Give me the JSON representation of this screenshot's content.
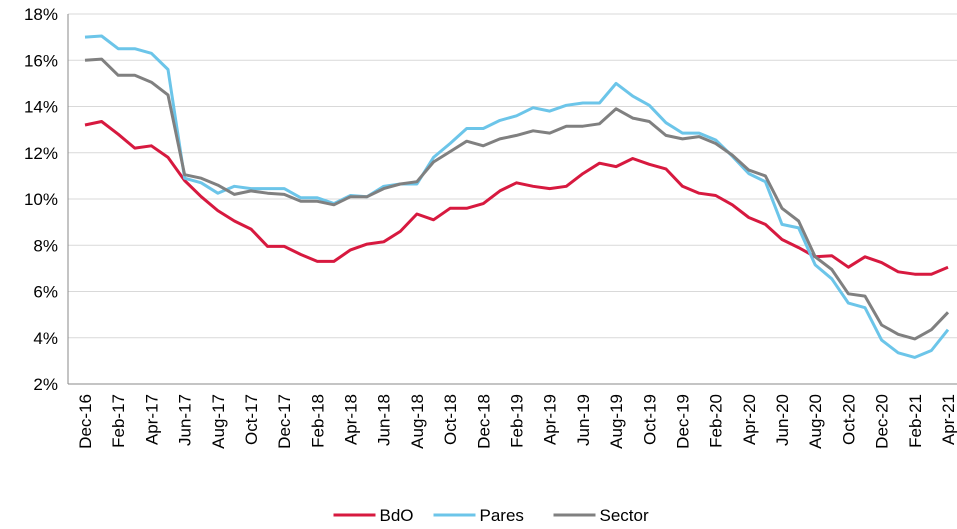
{
  "chart_data": {
    "type": "line",
    "categories": [
      "Dec-16",
      null,
      "Feb-17",
      null,
      "Apr-17",
      null,
      "Jun-17",
      null,
      "Aug-17",
      null,
      "Oct-17",
      null,
      "Dec-17",
      null,
      "Feb-18",
      null,
      "Apr-18",
      null,
      "Jun-18",
      null,
      "Aug-18",
      null,
      "Oct-18",
      null,
      "Dec-18",
      null,
      "Feb-19",
      null,
      "Apr-19",
      null,
      "Jun-19",
      null,
      "Aug-19",
      null,
      "Oct-19",
      null,
      "Dec-19",
      null,
      "Feb-20",
      null,
      "Apr-20",
      null,
      "Jun-20",
      null,
      "Aug-20",
      null,
      "Oct-20",
      null,
      "Dec-20",
      null,
      "Feb-21",
      null,
      "Apr-21"
    ],
    "series": [
      {
        "name": "BdO",
        "color": "#d7193f",
        "values": [
          13.2,
          13.35,
          12.8,
          12.2,
          12.3,
          11.8,
          10.8,
          10.1,
          9.5,
          9.05,
          8.7,
          7.95,
          7.95,
          7.6,
          7.3,
          7.3,
          7.8,
          8.05,
          8.15,
          8.6,
          9.35,
          9.1,
          9.6,
          9.6,
          9.8,
          10.35,
          10.7,
          10.55,
          10.45,
          10.55,
          11.1,
          11.55,
          11.4,
          11.75,
          11.5,
          11.3,
          10.55,
          10.25,
          10.15,
          9.75,
          9.2,
          8.9,
          8.25,
          7.9,
          7.5,
          7.55,
          7.05,
          7.5,
          7.25,
          6.85,
          6.75,
          6.75,
          7.05
        ]
      },
      {
        "name": "Pares",
        "color": "#6cc5e9",
        "values": [
          17.0,
          17.05,
          16.5,
          16.5,
          16.3,
          15.6,
          10.9,
          10.7,
          10.25,
          10.55,
          10.45,
          10.45,
          10.45,
          10.05,
          10.05,
          9.8,
          10.15,
          10.1,
          10.55,
          10.65,
          10.65,
          11.8,
          12.4,
          13.05,
          13.05,
          13.4,
          13.6,
          13.95,
          13.8,
          14.05,
          14.15,
          14.15,
          15.0,
          14.45,
          14.05,
          13.3,
          12.85,
          12.85,
          12.55,
          11.85,
          11.1,
          10.75,
          8.9,
          8.75,
          7.15,
          6.55,
          5.5,
          5.3,
          3.9,
          3.35,
          3.15,
          3.45,
          4.35
        ]
      },
      {
        "name": "Sector",
        "color": "#808080",
        "values": [
          16.0,
          16.05,
          15.35,
          15.35,
          15.05,
          14.5,
          11.05,
          10.9,
          10.6,
          10.2,
          10.35,
          10.25,
          10.2,
          9.9,
          9.9,
          9.75,
          10.1,
          10.1,
          10.45,
          10.65,
          10.75,
          11.6,
          12.05,
          12.5,
          12.3,
          12.6,
          12.75,
          12.95,
          12.85,
          13.15,
          13.15,
          13.25,
          13.9,
          13.5,
          13.35,
          12.75,
          12.6,
          12.7,
          12.4,
          11.9,
          11.25,
          11.0,
          9.6,
          9.05,
          7.5,
          6.95,
          5.9,
          5.8,
          4.55,
          4.15,
          3.95,
          4.35,
          5.1
        ]
      }
    ],
    "ylim": [
      2,
      18
    ],
    "yticks": [
      {
        "value": 2,
        "label": "2%"
      },
      {
        "value": 4,
        "label": "4%"
      },
      {
        "value": 6,
        "label": "6%"
      },
      {
        "value": 8,
        "label": "8%"
      },
      {
        "value": 10,
        "label": "10%"
      },
      {
        "value": 12,
        "label": "12%"
      },
      {
        "value": 14,
        "label": "14%"
      },
      {
        "value": 16,
        "label": "16%"
      },
      {
        "value": 18,
        "label": "18%"
      }
    ],
    "grid": true,
    "legend": "bottom"
  }
}
